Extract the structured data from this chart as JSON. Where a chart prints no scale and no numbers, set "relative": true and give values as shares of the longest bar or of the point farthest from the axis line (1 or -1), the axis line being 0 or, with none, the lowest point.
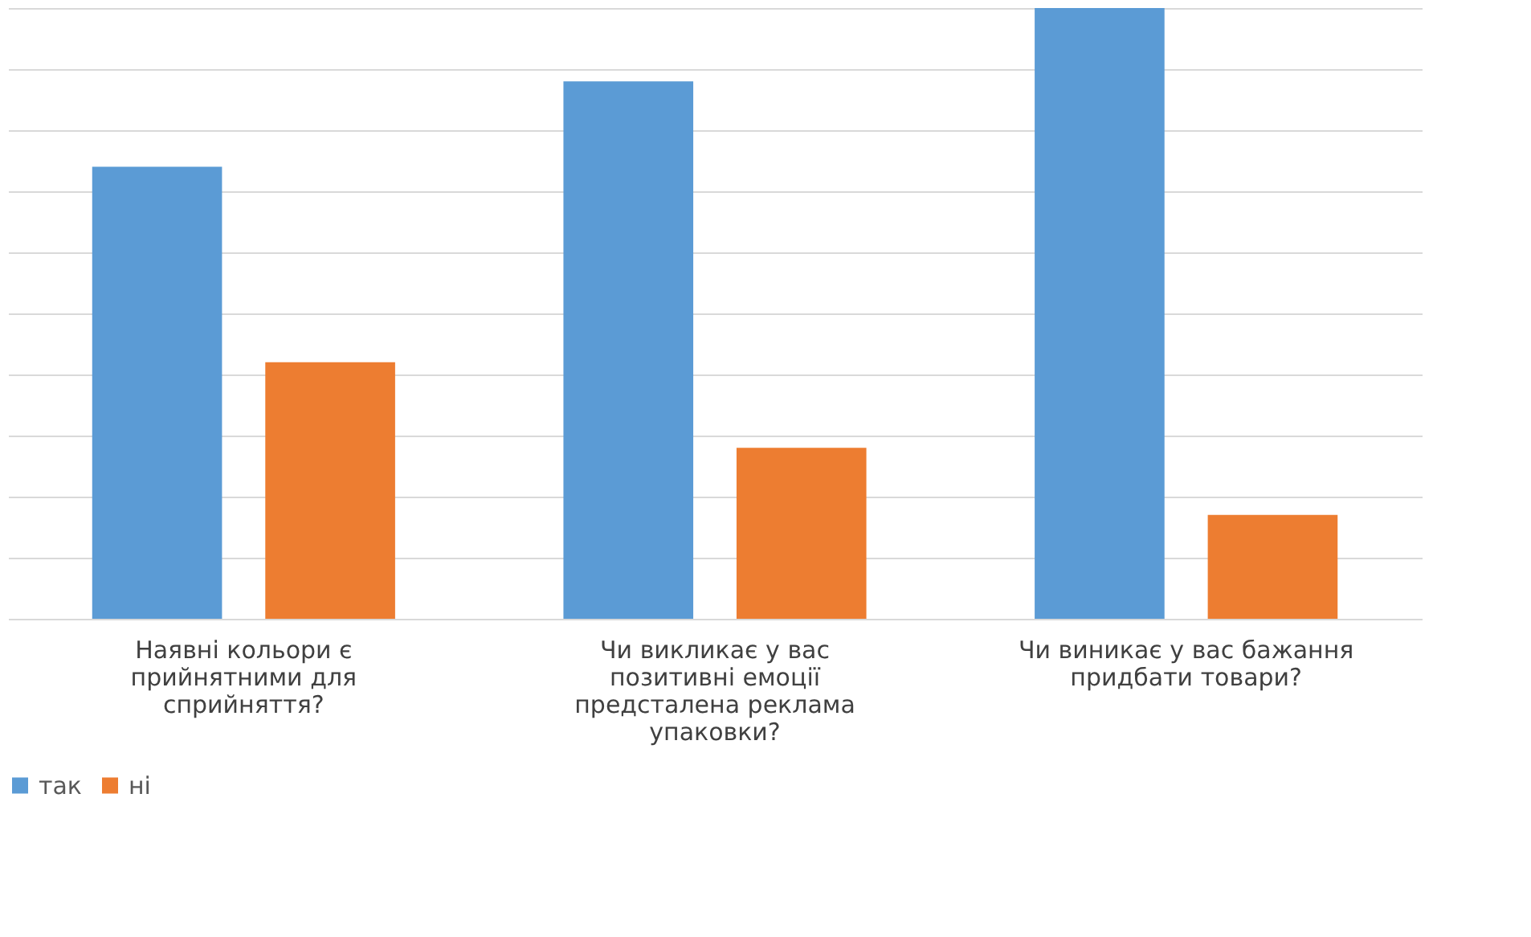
{
  "chart_data": {
    "type": "bar",
    "relative": true,
    "categories": [
      "Наявні кольори є прийнятними для сприйняття?",
      "Чи викликає у вас позитивні емоції предсталена реклама упаковки?",
      "Чи виникає у вас бажання придбати товари?"
    ],
    "series": [
      {
        "name": "так",
        "color": "#5b9bd5",
        "values": [
          0.74,
          0.88,
          1
        ]
      },
      {
        "name": "ні",
        "color": "#ed7d31",
        "values": [
          0.42,
          0.28,
          0.17
        ]
      }
    ],
    "grid": "y",
    "legend": "bottom"
  }
}
